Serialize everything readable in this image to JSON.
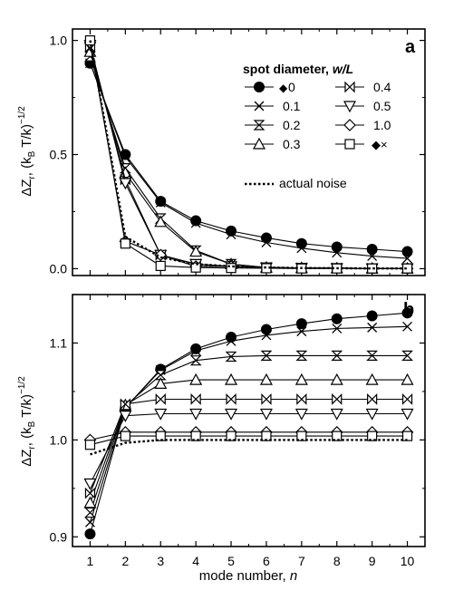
{
  "chart_data": [
    {
      "type": "line",
      "panel_label": "a",
      "x": [
        1,
        2,
        3,
        4,
        5,
        6,
        7,
        8,
        9,
        10
      ],
      "xlim": [
        0.5,
        10.5
      ],
      "ylim": [
        -0.03,
        1.05
      ],
      "yticks": [
        "0.0",
        "0.5",
        "1.0"
      ],
      "ylabel": {
        "main": "ΔZ",
        "sub": "r",
        "mid": ", (k",
        "sub2": "B",
        "tail": " T/k)",
        "sup": "−1/2"
      },
      "legend_title": {
        "text": "spot diameter, ",
        "italic": "w/L"
      },
      "legend_entries": [
        {
          "label": "0",
          "marker_prefix": "◆"
        },
        {
          "label": "0.1"
        },
        {
          "label": "0.2"
        },
        {
          "label": "0.3"
        },
        {
          "label": "0.4"
        },
        {
          "label": "0.5"
        },
        {
          "label": "1.0"
        },
        {
          "label": "",
          "marker_suffix": "◆×"
        }
      ],
      "noise_label": "actual noise",
      "series": [
        {
          "name": "0",
          "marker": "filled-circle",
          "values": [
            0.9,
            0.5,
            0.295,
            0.21,
            0.165,
            0.135,
            0.11,
            0.095,
            0.085,
            0.075
          ]
        },
        {
          "name": "0.1",
          "marker": "x",
          "values": [
            0.9,
            0.49,
            0.29,
            0.2,
            0.15,
            0.115,
            0.09,
            0.07,
            0.055,
            0.045
          ]
        },
        {
          "name": "0.2",
          "marker": "hourglass",
          "values": [
            0.93,
            0.44,
            0.22,
            0.08,
            0.02,
            0.005,
            0.003,
            0.002,
            0.001,
            0.001
          ]
        },
        {
          "name": "0.3",
          "marker": "up-triangle",
          "values": [
            0.95,
            0.42,
            0.205,
            0.075,
            0.02,
            0.005,
            0.003,
            0.002,
            0.001,
            0.001
          ]
        },
        {
          "name": "0.4",
          "marker": "bowtie",
          "values": [
            0.97,
            0.39,
            0.06,
            0.02,
            0.01,
            0.005,
            0.003,
            0.002,
            0.001,
            0.001
          ]
        },
        {
          "name": "0.5",
          "marker": "down-triangle",
          "values": [
            0.98,
            0.375,
            0.06,
            0.02,
            0.01,
            0.005,
            0.003,
            0.002,
            0.001,
            0.001
          ]
        },
        {
          "name": "1.0",
          "marker": "diamond",
          "values": [
            0.99,
            0.12,
            0.06,
            0.01,
            0.01,
            0.005,
            0.003,
            0.002,
            0.001,
            0.001
          ]
        },
        {
          "name": "",
          "marker": "square",
          "values": [
            1.0,
            0.11,
            0.012,
            0.005,
            0.003,
            0.002,
            0.001,
            0.001,
            0.001,
            0.001
          ]
        },
        {
          "name": "actual noise",
          "marker": "none",
          "dashed": true,
          "values": [
            1.0,
            0.14,
            0.05,
            0.02,
            0.01,
            0.005,
            0.003,
            0.002,
            0.001,
            0.001
          ]
        }
      ]
    },
    {
      "type": "line",
      "panel_label": "b",
      "x": [
        1,
        2,
        3,
        4,
        5,
        6,
        7,
        8,
        9,
        10
      ],
      "xlim": [
        0.5,
        10.5
      ],
      "ylim": [
        0.89,
        1.15
      ],
      "yticks": [
        "0.9",
        "1.0",
        "1.1"
      ],
      "xlabel": {
        "text": "mode number, ",
        "italic": "n"
      },
      "xticks": [
        "1",
        "2",
        "3",
        "4",
        "5",
        "6",
        "7",
        "8",
        "9",
        "10"
      ],
      "ylabel": {
        "main": "ΔZ",
        "sub": "r",
        "mid": ", (k",
        "sub2": "B",
        "tail": " T/k)",
        "sup": "−1/2"
      },
      "series": [
        {
          "name": "0",
          "marker": "filled-circle",
          "values": [
            0.903,
            1.033,
            1.073,
            1.094,
            1.106,
            1.114,
            1.12,
            1.125,
            1.128,
            1.131
          ]
        },
        {
          "name": "0.1",
          "marker": "x",
          "values": [
            0.915,
            1.033,
            1.072,
            1.092,
            1.102,
            1.108,
            1.112,
            1.115,
            1.116,
            1.117
          ]
        },
        {
          "name": "0.2",
          "marker": "hourglass",
          "values": [
            0.925,
            1.035,
            1.067,
            1.082,
            1.086,
            1.087,
            1.087,
            1.087,
            1.087,
            1.087
          ]
        },
        {
          "name": "0.3",
          "marker": "up-triangle",
          "values": [
            0.935,
            1.036,
            1.058,
            1.062,
            1.062,
            1.062,
            1.062,
            1.062,
            1.062,
            1.062
          ]
        },
        {
          "name": "0.4",
          "marker": "bowtie",
          "values": [
            0.945,
            1.037,
            1.042,
            1.042,
            1.042,
            1.042,
            1.042,
            1.042,
            1.042,
            1.042
          ]
        },
        {
          "name": "0.5",
          "marker": "down-triangle",
          "values": [
            0.955,
            1.025,
            1.027,
            1.027,
            1.027,
            1.027,
            1.027,
            1.027,
            1.027,
            1.027
          ]
        },
        {
          "name": "1.0",
          "marker": "diamond",
          "values": [
            1.0,
            1.008,
            1.008,
            1.008,
            1.008,
            1.008,
            1.008,
            1.008,
            1.008,
            1.008
          ]
        },
        {
          "name": "",
          "marker": "square",
          "values": [
            0.995,
            1.004,
            1.004,
            1.004,
            1.004,
            1.004,
            1.004,
            1.004,
            1.004,
            1.004
          ]
        },
        {
          "name": "actual noise",
          "marker": "none",
          "dashed": true,
          "values": [
            0.985,
            0.997,
            1.0,
            1.0,
            1.0,
            1.0,
            1.0,
            1.0,
            1.0,
            1.0
          ]
        }
      ]
    }
  ]
}
